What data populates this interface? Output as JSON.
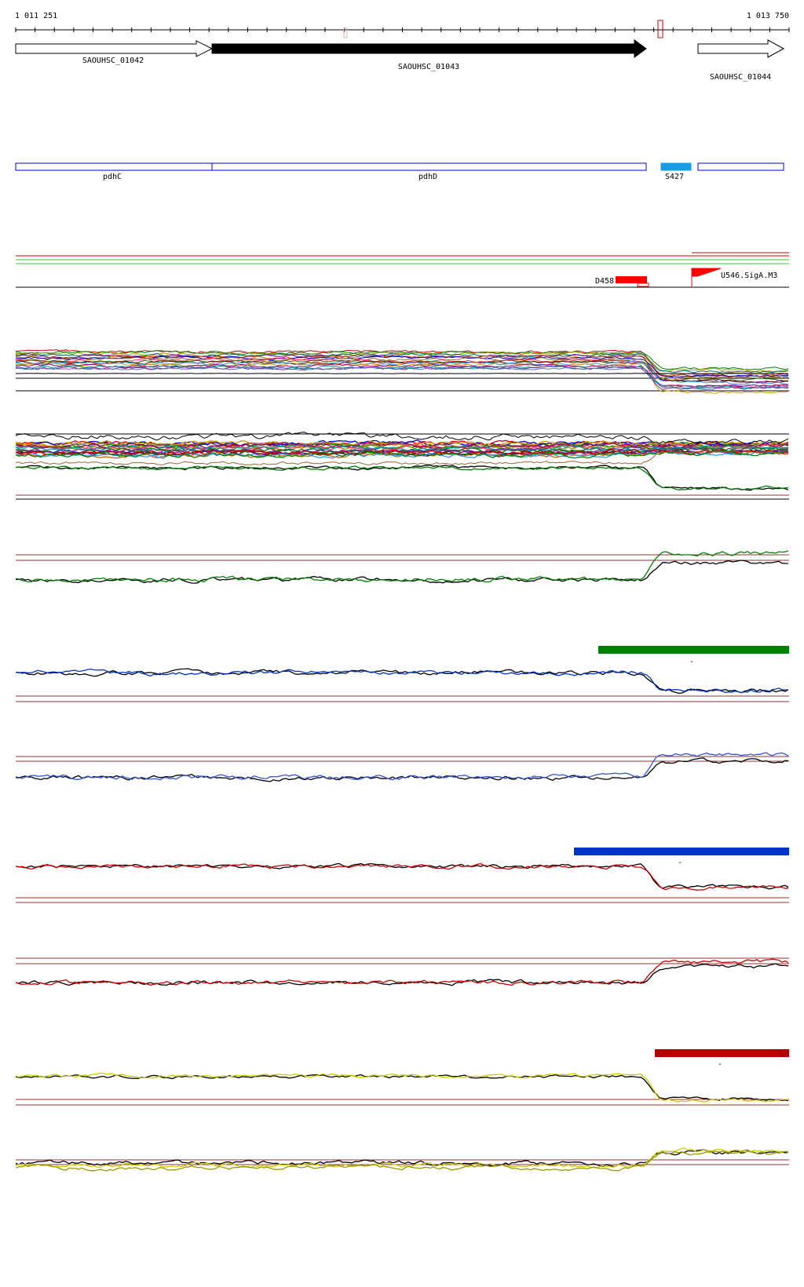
{
  "coordinates": {
    "start_label": "1 011 251",
    "end_label": "1 013 750"
  },
  "genes": [
    {
      "name": "SAOUHSC_01042",
      "style": "outline"
    },
    {
      "name": "SAOUHSC_01043",
      "style": "filled"
    },
    {
      "name": "SAOUHSC_01044",
      "style": "outline"
    }
  ],
  "annotations": [
    {
      "name": "pdhC",
      "color": "#0000cc"
    },
    {
      "name": "pdhD",
      "color": "#0000cc"
    },
    {
      "name": "S427",
      "color": "#1a9be6"
    }
  ],
  "features": [
    {
      "name": "D458",
      "color": "#ff0000"
    },
    {
      "name": "U546.SigA.M3",
      "color": "#ff0000"
    }
  ],
  "colors": {
    "green_condition": "#008000",
    "blue_condition": "#0033cc",
    "red_condition": "#cc0000",
    "yellow_condition": "#cccc00",
    "reference_line": "#993333"
  },
  "condition_markers": [
    "-",
    "-",
    "-"
  ]
}
